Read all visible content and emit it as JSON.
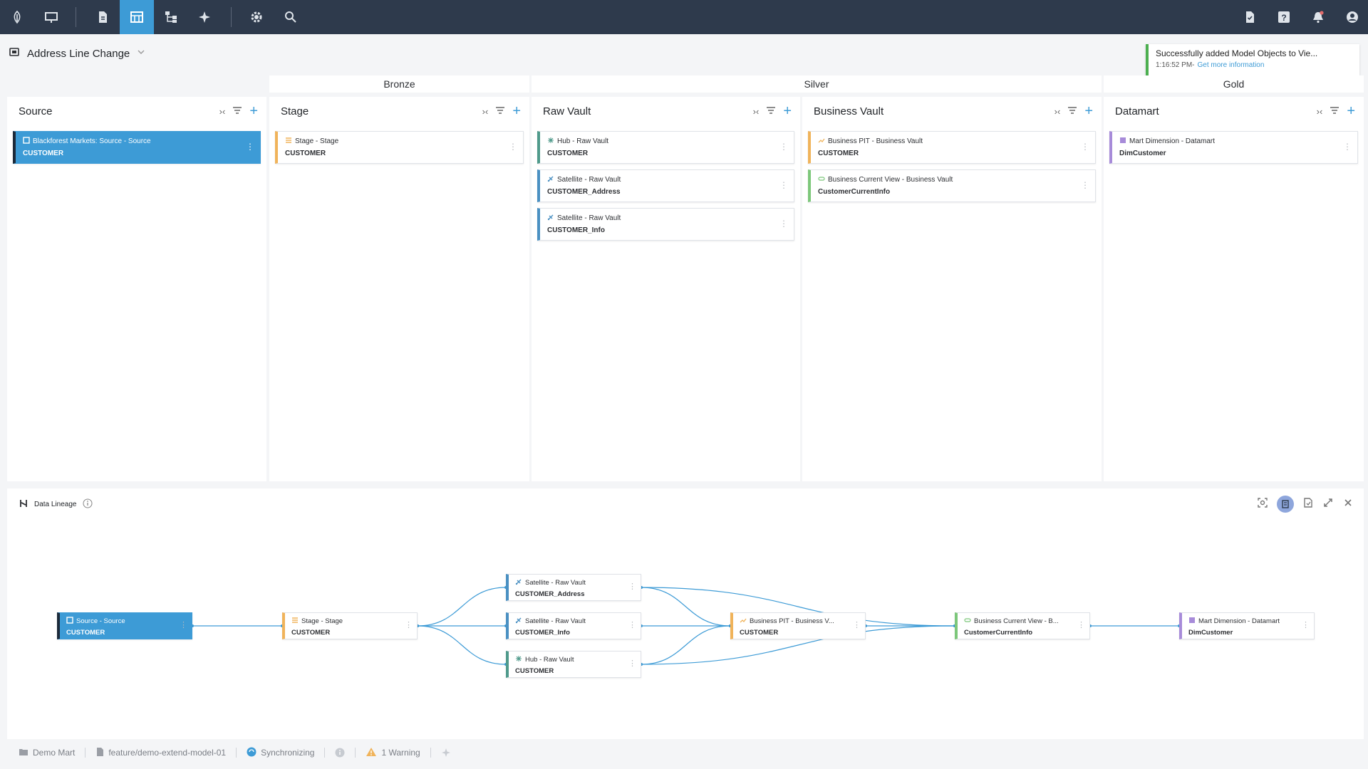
{
  "nav": {
    "items": [
      "logo-icon",
      "presentation-icon",
      "document-icon",
      "table-icon",
      "hierarchy-icon",
      "sparkle-icon",
      "gear-icon",
      "search-icon"
    ],
    "right_items": [
      "task-check-icon",
      "help-icon",
      "bell-icon",
      "account-icon"
    ],
    "active": "table-icon"
  },
  "header": {
    "title": "Address Line Change"
  },
  "toast": {
    "message": "Successfully added Model Objects to Vie...",
    "time": "1:16:52 PM-",
    "link": "Get more information"
  },
  "layers": {
    "bronze": "Bronze",
    "silver": "Silver",
    "gold": "Gold"
  },
  "columns": [
    {
      "title": "Source",
      "cards": [
        {
          "type": "Blackforest Markets: Source - Source",
          "name": "CUSTOMER",
          "color": "#1d2a3a",
          "selected": true,
          "icon": "square-icon"
        }
      ]
    },
    {
      "title": "Stage",
      "cards": [
        {
          "type": "Stage - Stage",
          "name": "CUSTOMER",
          "color": "#f0b35a",
          "icon": "stage-icon"
        }
      ]
    },
    {
      "title": "Raw Vault",
      "cards": [
        {
          "type": "Hub - Raw Vault",
          "name": "CUSTOMER",
          "color": "#4f9a8b",
          "icon": "hub-icon"
        },
        {
          "type": "Satellite - Raw Vault",
          "name": "CUSTOMER_Address",
          "color": "#4a90c2",
          "icon": "satellite-icon"
        },
        {
          "type": "Satellite - Raw Vault",
          "name": "CUSTOMER_Info",
          "color": "#4a90c2",
          "icon": "satellite-icon"
        }
      ]
    },
    {
      "title": "Business Vault",
      "cards": [
        {
          "type": "Business PIT - Business Vault",
          "name": "CUSTOMER",
          "color": "#f0b35a",
          "icon": "pit-icon"
        },
        {
          "type": "Business Current View - Business Vault",
          "name": "CustomerCurrentInfo",
          "color": "#7cc77a",
          "icon": "view-icon"
        }
      ]
    },
    {
      "title": "Datamart",
      "cards": [
        {
          "type": "Mart Dimension - Datamart",
          "name": "DimCustomer",
          "color": "#a78bd9",
          "icon": "dimension-icon"
        }
      ]
    }
  ],
  "lineage": {
    "title": "Data Lineage",
    "nodes": [
      {
        "id": "src",
        "type": "Source - Source",
        "name": "CUSTOMER",
        "color": "#1d2a3a",
        "selected": true,
        "icon": "square-icon"
      },
      {
        "id": "stg",
        "type": "Stage - Stage",
        "name": "CUSTOMER",
        "color": "#f0b35a",
        "icon": "stage-icon"
      },
      {
        "id": "sat_addr",
        "type": "Satellite - Raw Vault",
        "name": "CUSTOMER_Address",
        "color": "#4a90c2",
        "icon": "satellite-icon"
      },
      {
        "id": "sat_info",
        "type": "Satellite - Raw Vault",
        "name": "CUSTOMER_Info",
        "color": "#4a90c2",
        "icon": "satellite-icon"
      },
      {
        "id": "hub",
        "type": "Hub - Raw Vault",
        "name": "CUSTOMER",
        "color": "#4f9a8b",
        "icon": "hub-icon"
      },
      {
        "id": "pit",
        "type": "Business PIT - Business V...",
        "name": "CUSTOMER",
        "color": "#f0b35a",
        "icon": "pit-icon"
      },
      {
        "id": "bcv",
        "type": "Business Current View - B...",
        "name": "CustomerCurrentInfo",
        "color": "#7cc77a",
        "icon": "view-icon"
      },
      {
        "id": "mart",
        "type": "Mart Dimension - Datamart",
        "name": "DimCustomer",
        "color": "#a78bd9",
        "icon": "dimension-icon"
      }
    ]
  },
  "status": {
    "project": "Demo Mart",
    "branch": "feature/demo-extend-model-01",
    "sync": "Synchronizing",
    "warning": "1 Warning"
  },
  "colors": {
    "nav_bg": "#2e3a4c",
    "accent": "#3d9bd6",
    "edge": "#3d9bd6"
  }
}
